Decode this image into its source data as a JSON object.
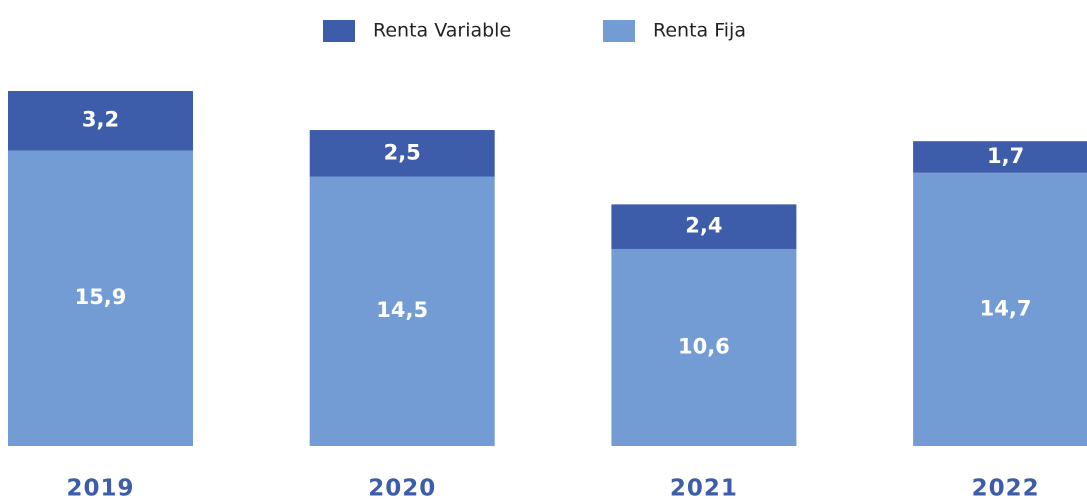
{
  "chart_data": {
    "type": "stacked_bar",
    "categories": [
      "2019",
      "2020",
      "2021",
      "2022"
    ],
    "series": [
      {
        "name": "Renta Variable",
        "color": "#3d5ca9",
        "values": [
          3.2,
          2.5,
          2.4,
          1.7
        ],
        "value_labels": [
          "3,2",
          "2,5",
          "2,4",
          "1,7"
        ]
      },
      {
        "name": "Renta Fija",
        "color": "#739cd5",
        "values": [
          15.9,
          14.5,
          10.6,
          14.7
        ],
        "value_labels": [
          "15,9",
          "14,5",
          "10,6",
          "14,7"
        ]
      }
    ]
  }
}
